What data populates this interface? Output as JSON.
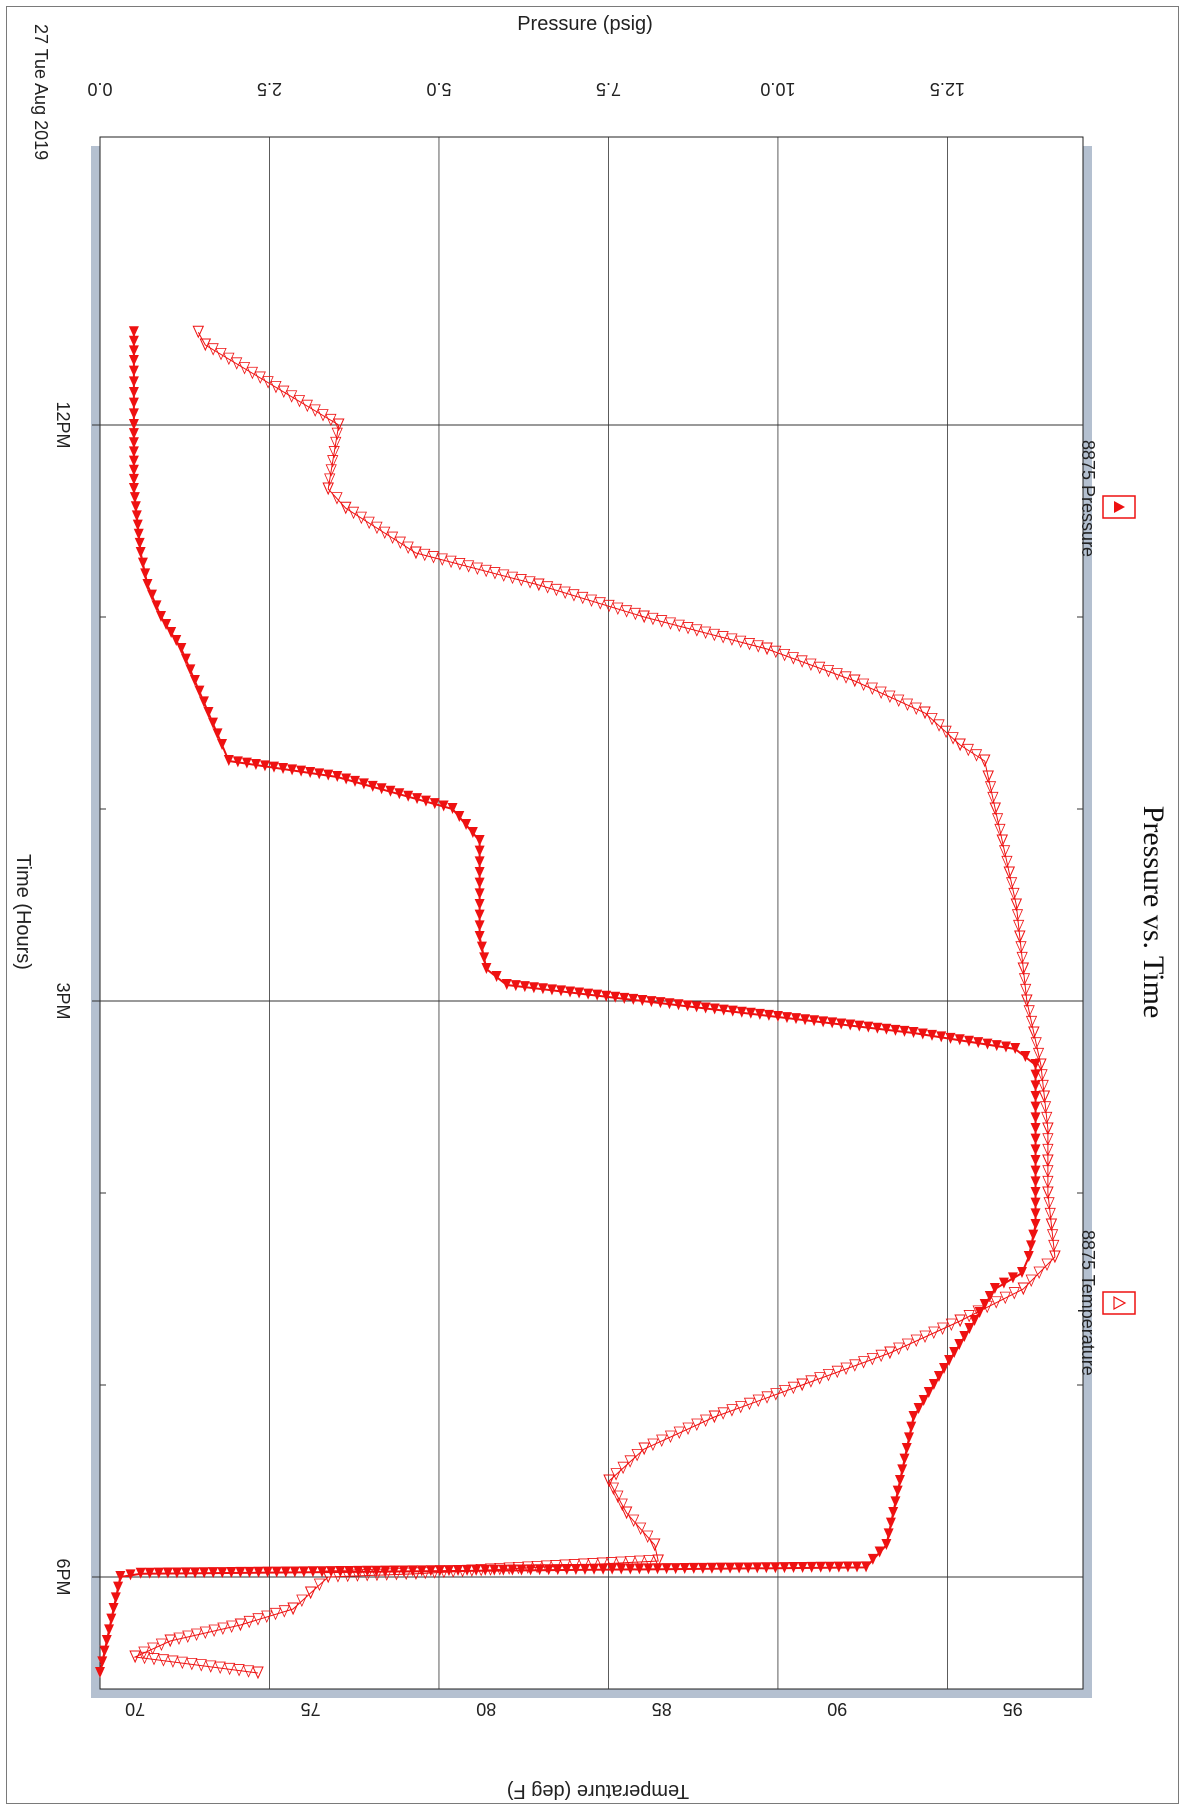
{
  "chart_data": {
    "type": "line",
    "orientation": "rotated 90 degrees clockwise",
    "title": "Pressure vs. Time",
    "date_label": "27 Tue Aug 2019",
    "xlabel": "Time (Hours)",
    "x_ticks": [
      "12PM",
      "3PM",
      "6PM"
    ],
    "x_range": [
      "10:30",
      "18:35"
    ],
    "y_left": {
      "label": "Pressure (psig)",
      "ticks": [
        "0.0",
        "2.5",
        "5.0",
        "7.5",
        "10.0",
        "12.5"
      ],
      "range": [
        0,
        14.5
      ]
    },
    "y_right": {
      "label": "Temperature (deg F)",
      "ticks": [
        "70",
        "75",
        "80",
        "85",
        "90",
        "95"
      ],
      "range": [
        69,
        97
      ]
    },
    "grid": true,
    "legend_position": "top",
    "colors": {
      "series": "#ee1111",
      "axis_band": "#b4c0d0",
      "grid": "#333333"
    },
    "series": [
      {
        "name": "8875 Pressure",
        "axis": "pressure",
        "marker": "filled-triangle",
        "x": [
          "11:31",
          "11:40",
          "11:50",
          "12:00",
          "12:20",
          "12:40",
          "12:50",
          "13:00",
          "13:10",
          "13:20",
          "13:30",
          "13:40",
          "13:45",
          "13:50",
          "14:00",
          "14:10",
          "14:20",
          "14:30",
          "14:40",
          "14:50",
          "14:55",
          "15:00",
          "15:05",
          "15:10",
          "15:15",
          "15:20",
          "15:30",
          "15:40",
          "15:50",
          "16:00",
          "16:10",
          "16:20",
          "16:25",
          "16:30",
          "16:40",
          "16:50",
          "17:00",
          "17:10",
          "17:20",
          "17:30",
          "17:40",
          "17:50",
          "17:57",
          "17:59",
          "18:00",
          "18:10",
          "18:20",
          "18:30"
        ],
        "y": [
          0.5,
          0.5,
          0.5,
          0.5,
          0.5,
          0.6,
          0.7,
          0.9,
          1.2,
          1.4,
          1.6,
          1.8,
          1.9,
          3.5,
          5.2,
          5.6,
          5.6,
          5.6,
          5.6,
          5.7,
          6.0,
          8.0,
          10.0,
          12.0,
          13.5,
          13.8,
          13.8,
          13.8,
          13.8,
          13.8,
          13.8,
          13.7,
          13.6,
          13.2,
          12.9,
          12.6,
          12.3,
          12.0,
          11.9,
          11.8,
          11.7,
          11.6,
          11.3,
          0.6,
          0.3,
          0.2,
          0.1,
          0.0
        ]
      },
      {
        "name": "8875 Temperature",
        "axis": "temperature",
        "marker": "hollow-triangle",
        "x": [
          "11:31",
          "11:35",
          "12:00",
          "12:20",
          "12:26",
          "12:40",
          "12:50",
          "13:00",
          "13:10",
          "13:20",
          "13:30",
          "13:40",
          "13:45",
          "13:50",
          "14:00",
          "14:10",
          "14:20",
          "14:30",
          "14:40",
          "14:50",
          "15:00",
          "15:10",
          "15:20",
          "15:30",
          "15:40",
          "15:50",
          "16:00",
          "16:10",
          "16:20",
          "16:30",
          "16:40",
          "16:50",
          "17:00",
          "17:10",
          "17:20",
          "17:30",
          "17:40",
          "17:50",
          "17:55",
          "17:59",
          "18:00",
          "18:05",
          "18:10",
          "18:15",
          "18:20",
          "18:25",
          "18:30"
        ],
        "y": [
          71.8,
          72.0,
          75.8,
          75.5,
          76.0,
          78.0,
          81.5,
          84.5,
          88.0,
          90.5,
          92.5,
          93.5,
          94.2,
          94.3,
          94.5,
          94.7,
          94.9,
          95.1,
          95.2,
          95.3,
          95.4,
          95.6,
          95.8,
          95.9,
          96.0,
          96.0,
          96.0,
          96.1,
          96.2,
          95.3,
          93.5,
          91.5,
          89.0,
          86.5,
          84.5,
          83.5,
          84.0,
          84.8,
          84.9,
          78.0,
          75.5,
          75.0,
          74.5,
          73.0,
          71.0,
          70.0,
          73.5
        ]
      }
    ]
  }
}
